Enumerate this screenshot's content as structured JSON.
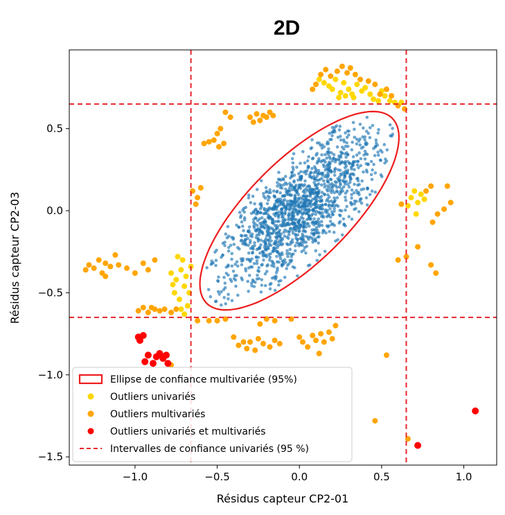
{
  "chart_data": {
    "type": "scatter",
    "title": "2D",
    "xlabel": "Résidus capteur CP2-01",
    "ylabel": "Résidus capteur CP2-03",
    "xlim": [
      -1.4,
      1.2
    ],
    "ylim": [
      -1.55,
      0.98
    ],
    "x_ticks": [
      -1.0,
      -0.5,
      0.0,
      0.5,
      1.0
    ],
    "x_tick_labels": [
      "−1.0",
      "−0.5",
      "0.0",
      "0.5",
      "1.0"
    ],
    "y_ticks": [
      -1.5,
      -1.0,
      -0.5,
      0.0,
      0.5
    ],
    "y_tick_labels": [
      "−1.5",
      "−1.0",
      "−0.5",
      "0.0",
      "0.5"
    ],
    "grid": false,
    "legend_position": "lower-left",
    "confidence_intervals": {
      "label": "Intervalles de confiance univariés (95 %)",
      "color": "#e8252b",
      "x_bounds": [
        -0.66,
        0.65
      ],
      "y_bounds": [
        -0.65,
        0.65
      ]
    },
    "ellipse": {
      "label": "Ellipse de confiance multivariée (95%)",
      "color": "#ee1c1c",
      "center": [
        0.0,
        0.0
      ],
      "axis_u": [
        0.56,
        0.568
      ],
      "axis_v": [
        -0.23,
        0.207
      ]
    },
    "series": [
      {
        "name": "Outliers univariés",
        "color": "#ffd700",
        "points": [
          [
            0.12,
            0.8
          ],
          [
            0.15,
            0.78
          ],
          [
            0.18,
            0.76
          ],
          [
            0.2,
            0.74
          ],
          [
            0.22,
            0.8
          ],
          [
            0.25,
            0.72
          ],
          [
            0.27,
            0.78
          ],
          [
            0.3,
            0.74
          ],
          [
            0.32,
            0.71
          ],
          [
            0.35,
            0.77
          ],
          [
            0.38,
            0.73
          ],
          [
            0.28,
            0.7
          ],
          [
            0.24,
            0.69
          ],
          [
            0.33,
            0.69
          ],
          [
            0.43,
            0.71
          ],
          [
            0.45,
            0.68
          ],
          [
            0.48,
            0.67
          ],
          [
            0.52,
            0.7
          ],
          [
            0.55,
            0.67
          ],
          [
            0.58,
            0.66
          ],
          [
            0.62,
            0.66
          ],
          [
            0.5,
            0.73
          ],
          [
            0.4,
            0.75
          ],
          [
            0.68,
            0.08
          ],
          [
            0.7,
            0.12
          ],
          [
            0.72,
            0.05
          ],
          [
            0.74,
            0.1
          ],
          [
            0.66,
            0.03
          ],
          [
            0.71,
            -0.02
          ],
          [
            0.76,
            0.07
          ],
          [
            -0.78,
            -0.38
          ],
          [
            -0.75,
            -0.42
          ],
          [
            -0.72,
            -0.36
          ],
          [
            -0.7,
            -0.46
          ],
          [
            -0.76,
            -0.5
          ],
          [
            -0.73,
            -0.54
          ],
          [
            -0.68,
            -0.58
          ],
          [
            -0.71,
            -0.3
          ],
          [
            -0.74,
            -0.28
          ],
          [
            -0.69,
            -0.4
          ],
          [
            -0.77,
            -0.45
          ],
          [
            -0.7,
            -0.63
          ],
          [
            -0.67,
            -0.5
          ],
          [
            -0.66,
            -0.34
          ],
          [
            -0.72,
            -0.6
          ]
        ]
      },
      {
        "name": "Outliers multivariés",
        "color": "#ffa500",
        "points": [
          [
            0.13,
            0.83
          ],
          [
            0.16,
            0.86
          ],
          [
            0.19,
            0.82
          ],
          [
            0.23,
            0.85
          ],
          [
            0.26,
            0.88
          ],
          [
            0.29,
            0.84
          ],
          [
            0.31,
            0.87
          ],
          [
            0.34,
            0.83
          ],
          [
            0.37,
            0.8
          ],
          [
            0.1,
            0.77
          ],
          [
            0.08,
            0.74
          ],
          [
            0.42,
            0.79
          ],
          [
            0.46,
            0.77
          ],
          [
            0.49,
            0.71
          ],
          [
            0.53,
            0.74
          ],
          [
            0.56,
            0.7
          ],
          [
            0.6,
            0.64
          ],
          [
            0.64,
            0.62
          ],
          [
            -0.45,
            0.6
          ],
          [
            -0.42,
            0.57
          ],
          [
            -0.5,
            0.47
          ],
          [
            -0.52,
            0.43
          ],
          [
            -0.55,
            0.42
          ],
          [
            -0.49,
            0.39
          ],
          [
            -0.46,
            0.41
          ],
          [
            -0.48,
            0.5
          ],
          [
            -0.58,
            0.41
          ],
          [
            -0.3,
            0.57
          ],
          [
            -0.26,
            0.59
          ],
          [
            -0.22,
            0.58
          ],
          [
            -0.2,
            0.57
          ],
          [
            -0.18,
            0.6
          ],
          [
            -0.24,
            0.55
          ],
          [
            -0.16,
            0.58
          ],
          [
            -0.28,
            0.54
          ],
          [
            -0.65,
            0.12
          ],
          [
            -0.62,
            0.08
          ],
          [
            -0.6,
            0.14
          ],
          [
            -0.63,
            0.04
          ],
          [
            0.62,
            0.04
          ],
          [
            0.77,
            0.12
          ],
          [
            0.8,
            0.15
          ],
          [
            0.84,
            -0.02
          ],
          [
            0.88,
            0.01
          ],
          [
            0.9,
            0.15
          ],
          [
            0.92,
            0.05
          ],
          [
            0.81,
            -0.07
          ],
          [
            0.72,
            -0.22
          ],
          [
            0.6,
            -0.3
          ],
          [
            0.65,
            -0.28
          ],
          [
            0.8,
            -0.33
          ],
          [
            0.83,
            -0.38
          ],
          [
            -1.28,
            -0.33
          ],
          [
            -1.25,
            -0.35
          ],
          [
            -1.22,
            -0.3
          ],
          [
            -1.18,
            -0.32
          ],
          [
            -1.15,
            -0.34
          ],
          [
            -1.2,
            -0.38
          ],
          [
            -1.1,
            -0.33
          ],
          [
            -1.05,
            -0.35
          ],
          [
            -1.0,
            -0.38
          ],
          [
            -0.95,
            -0.32
          ],
          [
            -0.92,
            -0.36
          ],
          [
            -1.3,
            -0.36
          ],
          [
            -1.12,
            -0.27
          ],
          [
            -0.88,
            -0.3
          ],
          [
            -1.18,
            -0.4
          ],
          [
            -0.98,
            -0.61
          ],
          [
            -0.95,
            -0.59
          ],
          [
            -0.92,
            -0.62
          ],
          [
            -0.88,
            -0.6
          ],
          [
            -0.85,
            -0.61
          ],
          [
            -0.82,
            -0.6
          ],
          [
            -0.78,
            -0.62
          ],
          [
            -0.75,
            -0.6
          ],
          [
            -0.9,
            -0.59
          ],
          [
            -0.78,
            -0.94
          ],
          [
            -0.62,
            -0.67
          ],
          [
            -0.55,
            -0.67
          ],
          [
            -0.5,
            -0.67
          ],
          [
            -0.45,
            -0.66
          ],
          [
            -0.4,
            -0.77
          ],
          [
            -0.37,
            -0.82
          ],
          [
            -0.34,
            -0.8
          ],
          [
            -0.32,
            -0.84
          ],
          [
            -0.3,
            -0.8
          ],
          [
            -0.25,
            -0.78
          ],
          [
            -0.22,
            -0.81
          ],
          [
            -0.18,
            -0.83
          ],
          [
            -0.15,
            -0.79
          ],
          [
            -0.12,
            -0.81
          ],
          [
            -0.27,
            -0.85
          ],
          [
            -0.24,
            -0.69
          ],
          [
            -0.2,
            -0.66
          ],
          [
            -0.15,
            -0.67
          ],
          [
            -0.05,
            -0.66
          ],
          [
            0.0,
            -0.77
          ],
          [
            0.02,
            -0.8
          ],
          [
            0.05,
            -0.83
          ],
          [
            0.08,
            -0.76
          ],
          [
            0.1,
            -0.79
          ],
          [
            0.13,
            -0.75
          ],
          [
            0.15,
            -0.8
          ],
          [
            0.18,
            -0.74
          ],
          [
            0.2,
            -0.78
          ],
          [
            0.22,
            -0.7
          ],
          [
            0.12,
            -0.87
          ],
          [
            0.53,
            -0.88
          ],
          [
            0.46,
            -1.28
          ],
          [
            0.66,
            -1.39
          ]
        ]
      },
      {
        "name": "Outliers univariés et multivariés",
        "color": "#ff0000",
        "points": [
          [
            -0.98,
            -0.77
          ],
          [
            -0.97,
            -0.79
          ],
          [
            -0.95,
            -0.76
          ],
          [
            -0.94,
            -0.92
          ],
          [
            -0.92,
            -0.88
          ],
          [
            -0.89,
            -0.93
          ],
          [
            -0.87,
            -0.89
          ],
          [
            -0.85,
            -0.87
          ],
          [
            -0.83,
            -0.9
          ],
          [
            -0.81,
            -0.88
          ],
          [
            -0.8,
            -0.93
          ],
          [
            0.72,
            -1.43
          ],
          [
            1.07,
            -1.22
          ]
        ]
      }
    ],
    "bulk_series": {
      "name": "Résidus",
      "color": "#1f77b4",
      "count": 1400,
      "shape": "ellipse cloud centered at (0.0, 0.0), correlated, filling the inner confidence region"
    }
  }
}
